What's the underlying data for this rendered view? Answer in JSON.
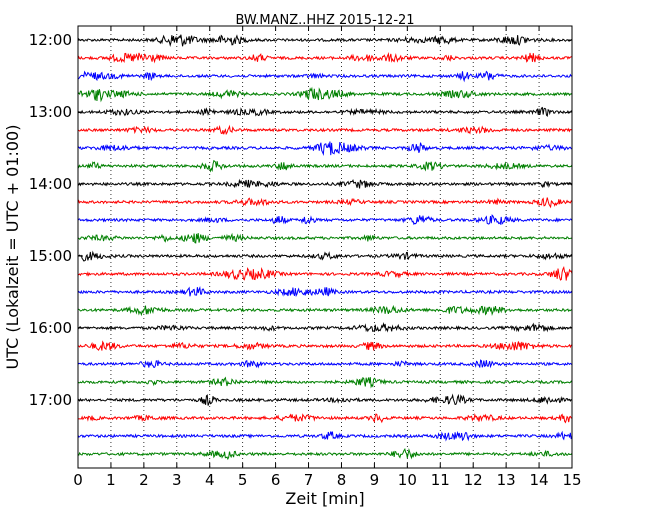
{
  "chart_data": {
    "type": "line",
    "title": "BW.MANZ..HHZ 2015-12-21",
    "xlabel": "Zeit  [min]",
    "ylabel": "UTC (Lokalzeit = UTC + 01:00)",
    "xlim": [
      0,
      15
    ],
    "x_ticks": [
      "0",
      "1",
      "2",
      "3",
      "4",
      "5",
      "6",
      "7",
      "8",
      "9",
      "10",
      "11",
      "12",
      "13",
      "14",
      "15"
    ],
    "y_tick_labels": [
      "12:00",
      "13:00",
      "14:00",
      "15:00",
      "16:00",
      "17:00"
    ],
    "trace_start_times": [
      "12:00",
      "12:15",
      "12:30",
      "12:45",
      "13:00",
      "13:15",
      "13:30",
      "13:45",
      "14:00",
      "14:15",
      "14:30",
      "14:45",
      "15:00",
      "15:15",
      "15:30",
      "15:45",
      "16:00",
      "16:15",
      "16:30",
      "16:45",
      "17:00",
      "17:15",
      "17:30",
      "17:45"
    ],
    "trace_colors": [
      "#000000",
      "#ff0000",
      "#0000ff",
      "#008000"
    ],
    "grid": "vertical dotted at each minute",
    "legend": "none"
  }
}
